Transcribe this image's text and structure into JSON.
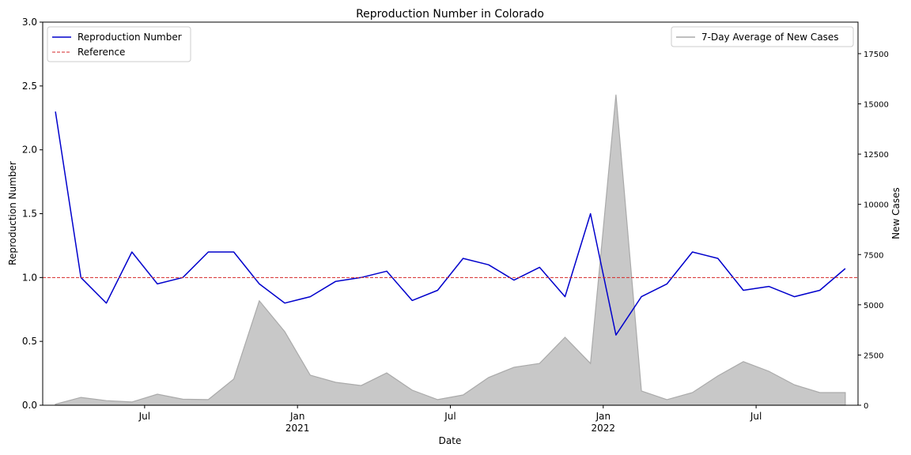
{
  "chart_data": {
    "type": "line",
    "title": "Reproduction Number in Colorado",
    "xlabel": "Date",
    "ylabel": "Reproduction Number",
    "y2label": "New Cases",
    "x": [
      "2020-03",
      "2020-04",
      "2020-05",
      "2020-06",
      "2020-07",
      "2020-08",
      "2020-09",
      "2020-10",
      "2020-11",
      "2020-12",
      "2021-01",
      "2021-02",
      "2021-03",
      "2021-04",
      "2021-05",
      "2021-06",
      "2021-07",
      "2021-08",
      "2021-09",
      "2021-10",
      "2021-11",
      "2021-12",
      "2022-01",
      "2022-02",
      "2022-03",
      "2022-04",
      "2022-05",
      "2022-06",
      "2022-07",
      "2022-08",
      "2022-09",
      "2022-10"
    ],
    "series": [
      {
        "name": "Reproduction Number",
        "color": "#0000cc",
        "values": [
          2.3,
          1.0,
          0.8,
          1.2,
          0.95,
          1.0,
          1.2,
          1.2,
          0.95,
          0.8,
          0.85,
          0.97,
          1.0,
          1.05,
          0.82,
          0.9,
          1.15,
          1.1,
          0.98,
          1.08,
          0.85,
          1.5,
          0.55,
          0.85,
          0.95,
          1.2,
          1.15,
          0.9,
          0.93,
          0.85,
          0.9,
          1.07
        ]
      },
      {
        "name": "7-Day Average of New Cases",
        "color": "#aaaaaa",
        "axis": "y2",
        "area": true,
        "values": [
          50,
          390,
          230,
          160,
          550,
          300,
          280,
          1300,
          5200,
          3660,
          1500,
          1140,
          980,
          1610,
          750,
          280,
          510,
          1380,
          1890,
          2080,
          3380,
          2080,
          15460,
          710,
          280,
          630,
          1460,
          2170,
          1690,
          1020,
          630,
          630
        ]
      }
    ],
    "reference_line": {
      "name": "Reference",
      "value": 1,
      "color": "#d62728"
    },
    "xlim": [
      "2020-03",
      "2022-11"
    ],
    "xticks": [
      {
        "value": "2020-07",
        "label": "Jul"
      },
      {
        "value": "2021-01",
        "label": "Jan\n2021"
      },
      {
        "value": "2021-07",
        "label": "Jul"
      },
      {
        "value": "2022-01",
        "label": "Jan\n2022"
      },
      {
        "value": "2022-07",
        "label": "Jul"
      }
    ],
    "ylim": [
      0,
      3
    ],
    "yticks": [
      {
        "value": 0,
        "label": "0.0"
      },
      {
        "value": 0.5,
        "label": "0.5"
      },
      {
        "value": 1,
        "label": "1.0"
      },
      {
        "value": 1.5,
        "label": "1.5"
      },
      {
        "value": 2,
        "label": "2.0"
      },
      {
        "value": 2.5,
        "label": "2.5"
      },
      {
        "value": 3,
        "label": "3.0"
      }
    ],
    "y2lim": [
      0,
      19070
    ],
    "y2ticks": [
      0,
      2500,
      5000,
      7500,
      10000,
      12500,
      15000,
      17500
    ],
    "legend": "upper left",
    "legend2": "upper right"
  }
}
